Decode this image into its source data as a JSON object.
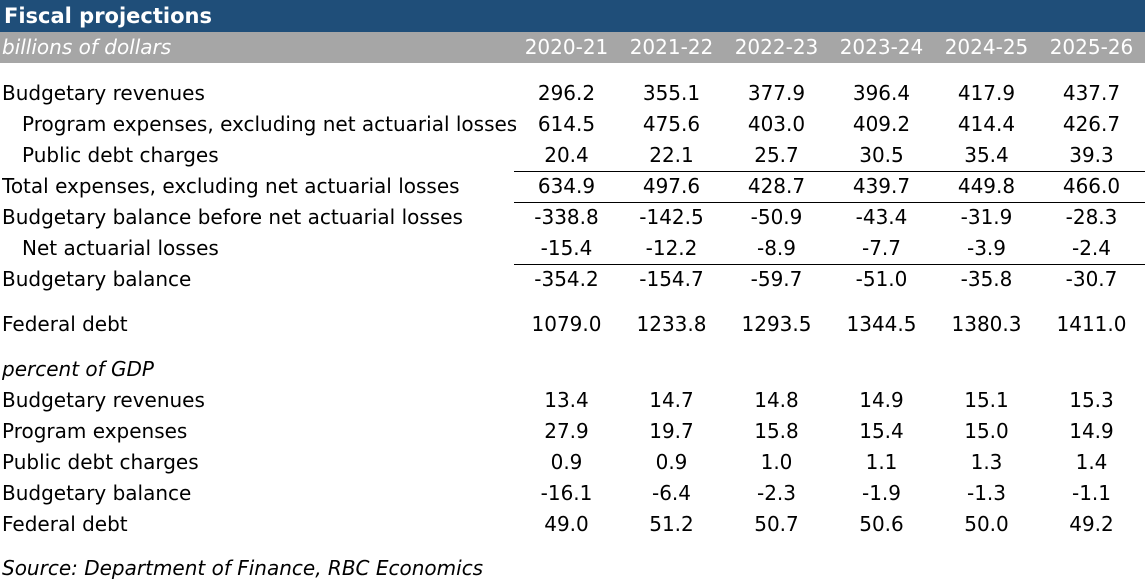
{
  "title": "Fiscal projections",
  "units_label": "billions of dollars",
  "years": [
    "2020-21",
    "2021-22",
    "2022-23",
    "2023-24",
    "2024-25",
    "2025-26"
  ],
  "billions": {
    "budgetary_revenues": {
      "label": "Budgetary revenues",
      "values": [
        "296.2",
        "355.1",
        "377.9",
        "396.4",
        "417.9",
        "437.7"
      ]
    },
    "program_expenses": {
      "label": "Program expenses, excluding net actuarial losses",
      "values": [
        "614.5",
        "475.6",
        "403.0",
        "409.2",
        "414.4",
        "426.7"
      ]
    },
    "public_debt_charges": {
      "label": "Public debt charges",
      "values": [
        "20.4",
        "22.1",
        "25.7",
        "30.5",
        "35.4",
        "39.3"
      ]
    },
    "total_expenses": {
      "label": "Total expenses, excluding net actuarial losses",
      "values": [
        "634.9",
        "497.6",
        "428.7",
        "439.7",
        "449.8",
        "466.0"
      ]
    },
    "balance_before": {
      "label": "Budgetary balance before net actuarial losses",
      "values": [
        "-338.8",
        "-142.5",
        "-50.9",
        "-43.4",
        "-31.9",
        "-28.3"
      ]
    },
    "net_actuarial_losses": {
      "label": "Net actuarial losses",
      "values": [
        "-15.4",
        "-12.2",
        "-8.9",
        "-7.7",
        "-3.9",
        "-2.4"
      ]
    },
    "budgetary_balance": {
      "label": "Budgetary balance",
      "values": [
        "-354.2",
        "-154.7",
        "-59.7",
        "-51.0",
        "-35.8",
        "-30.7"
      ]
    },
    "federal_debt": {
      "label": "Federal debt",
      "values": [
        "1079.0",
        "1233.8",
        "1293.5",
        "1344.5",
        "1380.3",
        "1411.0"
      ]
    }
  },
  "gdp_section_label": "percent of GDP",
  "gdp": {
    "budgetary_revenues": {
      "label": "Budgetary revenues",
      "values": [
        "13.4",
        "14.7",
        "14.8",
        "14.9",
        "15.1",
        "15.3"
      ]
    },
    "program_expenses": {
      "label": "Program expenses",
      "values": [
        "27.9",
        "19.7",
        "15.8",
        "15.4",
        "15.0",
        "14.9"
      ]
    },
    "public_debt_charges": {
      "label": "Public debt charges",
      "values": [
        "0.9",
        "0.9",
        "1.0",
        "1.1",
        "1.3",
        "1.4"
      ]
    },
    "budgetary_balance": {
      "label": "Budgetary balance",
      "values": [
        "-16.1",
        "-6.4",
        "-2.3",
        "-1.9",
        "-1.3",
        "-1.1"
      ]
    },
    "federal_debt": {
      "label": "Federal debt",
      "values": [
        "49.0",
        "51.2",
        "50.7",
        "50.6",
        "50.0",
        "49.2"
      ]
    }
  },
  "source": "Source: Department of Finance, RBC Economics"
}
